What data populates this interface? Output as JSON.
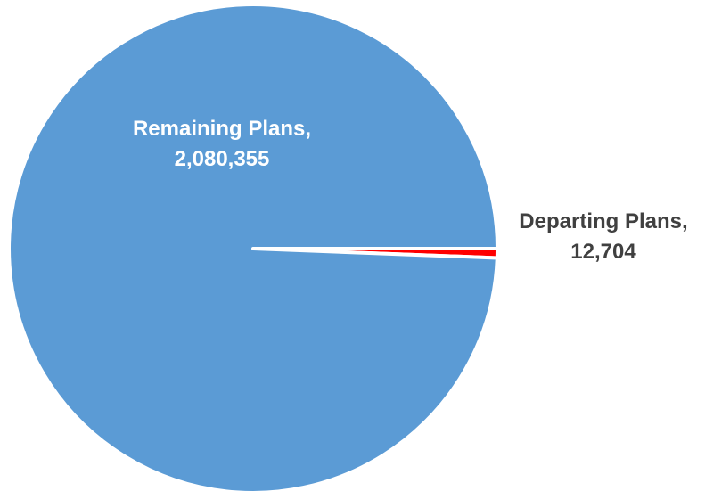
{
  "chart_data": {
    "type": "pie",
    "slices": [
      {
        "label": "Remaining Plans",
        "value": 2080355,
        "value_text": "2,080,355",
        "color": "#5b9bd5"
      },
      {
        "label": "Departing Plans",
        "value": 12704,
        "value_text": "12,704",
        "color": "#ff0000"
      }
    ],
    "slice_border_color": "#ffffff",
    "legend": "none",
    "data_labels": "category-and-value"
  }
}
